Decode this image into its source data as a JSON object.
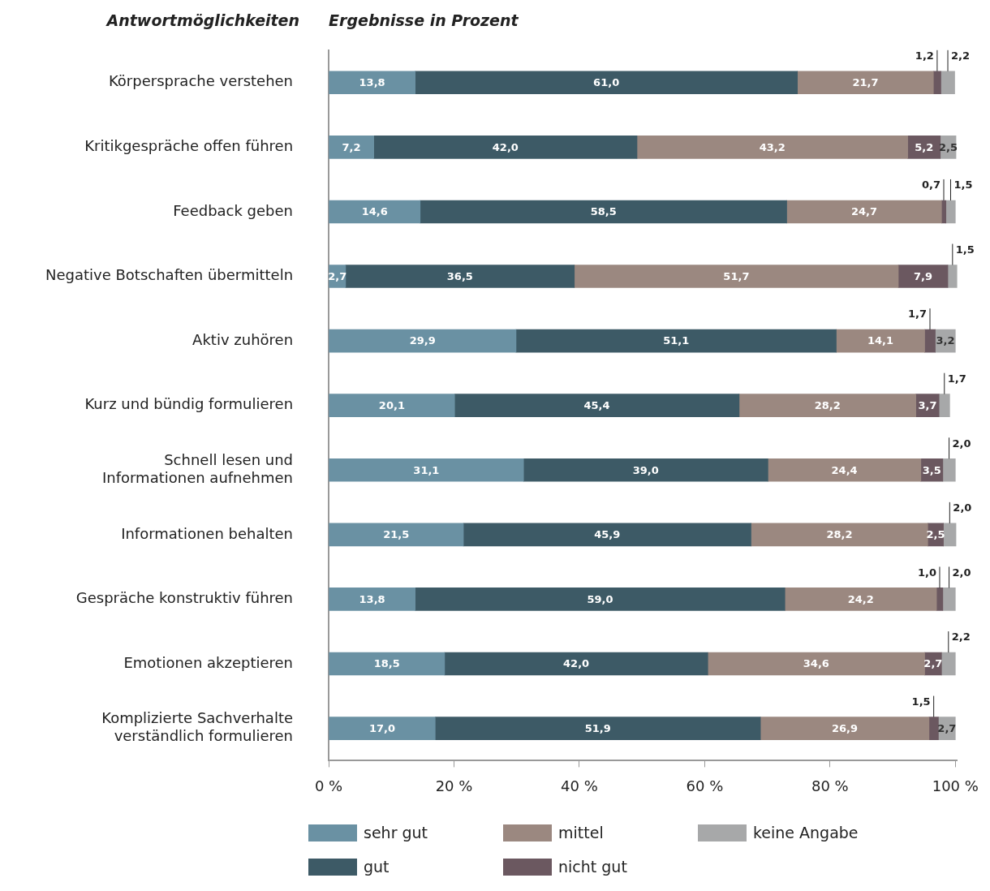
{
  "chart_data": {
    "type": "bar",
    "orientation": "horizontal",
    "stacked": true,
    "title": "Ergebnisse in Prozent",
    "ylabel": "Antwortmöglichkeiten",
    "categories": [
      "Körpersprache verstehen",
      "Kritikgespräche offen führen",
      "Feedback geben",
      "Negative Botschaften übermitteln",
      "Aktiv zuhören",
      "Kurz und bündig formulieren",
      "Schnell lesen und Informationen aufnehmen",
      "Informationen behalten",
      "Gespräche konstruktiv führen",
      "Emotionen akzeptieren",
      "Komplizierte Sachverhalte verständlich formulieren"
    ],
    "series": [
      {
        "name": "sehr gut",
        "color": "#6a91a3",
        "values": [
          13.8,
          7.2,
          14.6,
          2.7,
          29.9,
          20.1,
          31.1,
          21.5,
          13.8,
          18.5,
          17.0
        ],
        "value_labels": [
          "13,8",
          "7,2",
          "14,6",
          "2,7",
          "29,9",
          "20,1",
          "31,1",
          "21,5",
          "13,8",
          "18,5",
          "17,0"
        ]
      },
      {
        "name": "gut",
        "color": "#3d5a66",
        "values": [
          61.0,
          42.0,
          58.5,
          36.5,
          51.1,
          45.4,
          39.0,
          45.9,
          59.0,
          42.0,
          51.9
        ],
        "value_labels": [
          "61,0",
          "42,0",
          "58,5",
          "36,5",
          "51,1",
          "45,4",
          "39,0",
          "45,9",
          "59,0",
          "42,0",
          "51,9"
        ]
      },
      {
        "name": "mittel",
        "color": "#9b8880",
        "values": [
          21.7,
          43.2,
          24.7,
          51.7,
          14.1,
          28.2,
          24.4,
          28.2,
          24.2,
          34.6,
          26.9
        ],
        "value_labels": [
          "21,7",
          "43,2",
          "24,7",
          "51,7",
          "14,1",
          "28,2",
          "24,4",
          "28,2",
          "24,2",
          "34,6",
          "26,9"
        ]
      },
      {
        "name": "nicht gut",
        "color": "#6b5860",
        "values": [
          1.2,
          5.2,
          0.7,
          7.9,
          1.7,
          3.7,
          3.5,
          2.5,
          1.0,
          2.7,
          1.5
        ],
        "value_labels": [
          "1,2",
          "5,2",
          "0,7",
          "7,9",
          "1,7",
          "3,7",
          "3,5",
          "2,5",
          "1,0",
          "2,7",
          "1,5"
        ]
      },
      {
        "name": "keine Angabe",
        "color": "#a7a8a9",
        "values": [
          2.2,
          2.5,
          1.5,
          1.5,
          3.2,
          1.7,
          2.0,
          2.0,
          2.0,
          2.2,
          2.7
        ],
        "value_labels": [
          "2,2",
          "2,5",
          "1,5",
          "1,5",
          "3,2",
          "1,7",
          "2,0",
          "2,0",
          "2,0",
          "2,2",
          "2,7"
        ]
      }
    ],
    "xlim": [
      0,
      100.3
    ],
    "xticks": [
      {
        "value": 0,
        "label": "0 %"
      },
      {
        "value": 20,
        "label": "20 %"
      },
      {
        "value": 40,
        "label": "40 %"
      },
      {
        "value": 60,
        "label": "60 %"
      },
      {
        "value": 80,
        "label": "80 %"
      },
      {
        "value": 100,
        "label": "100 %"
      }
    ],
    "grid": false,
    "legend": "bottom"
  }
}
